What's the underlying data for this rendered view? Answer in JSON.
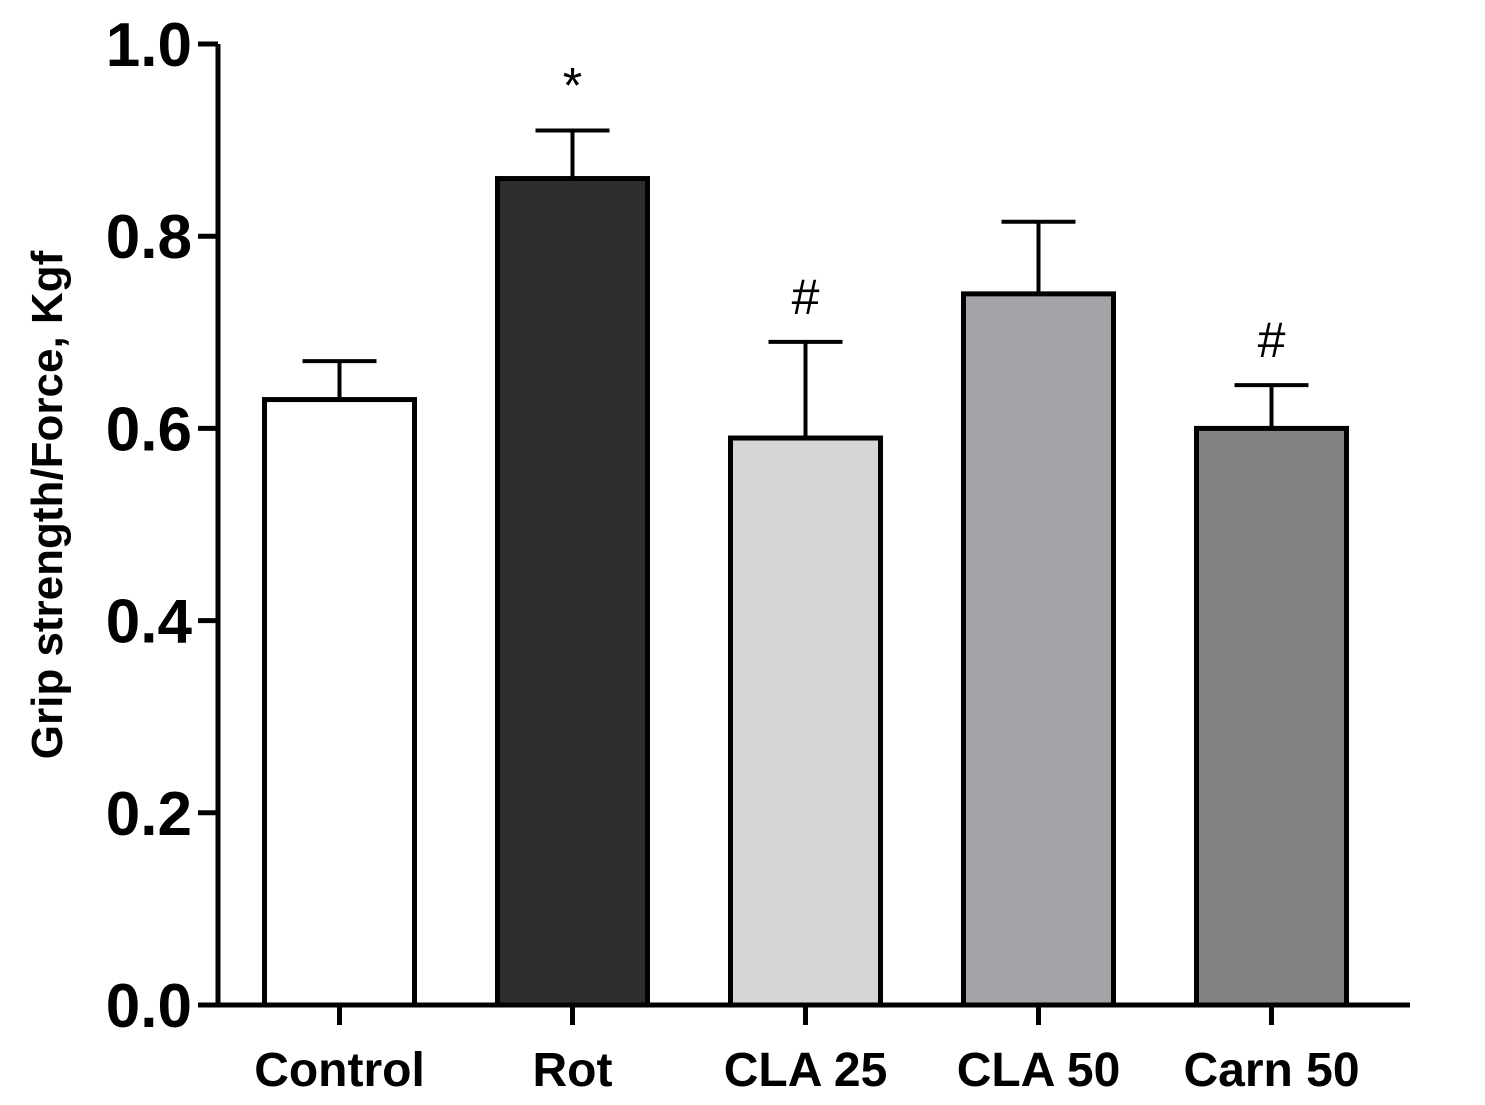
{
  "chart_data": {
    "type": "bar",
    "title": "",
    "xlabel": "",
    "ylabel": "Grip strength/Force, Kgf",
    "ylim": [
      0,
      1.0
    ],
    "yticks": [
      0.0,
      0.2,
      0.4,
      0.6,
      0.8,
      1.0
    ],
    "ytick_labels": [
      "0.0",
      "0.2",
      "0.4",
      "0.6",
      "0.8",
      "1.0"
    ],
    "grid": false,
    "categories": [
      "Control",
      "Rot",
      "CLA 25",
      "CLA 50",
      "Carn 50"
    ],
    "values": [
      0.63,
      0.86,
      0.59,
      0.74,
      0.6
    ],
    "errors": [
      0.04,
      0.05,
      0.1,
      0.075,
      0.045
    ],
    "colors": [
      "#ffffff",
      "#2e2e2e",
      "#d6d6d6",
      "#a3a4a8",
      "#838383"
    ],
    "annotations": [
      "",
      "*",
      "#",
      "",
      "#"
    ]
  }
}
